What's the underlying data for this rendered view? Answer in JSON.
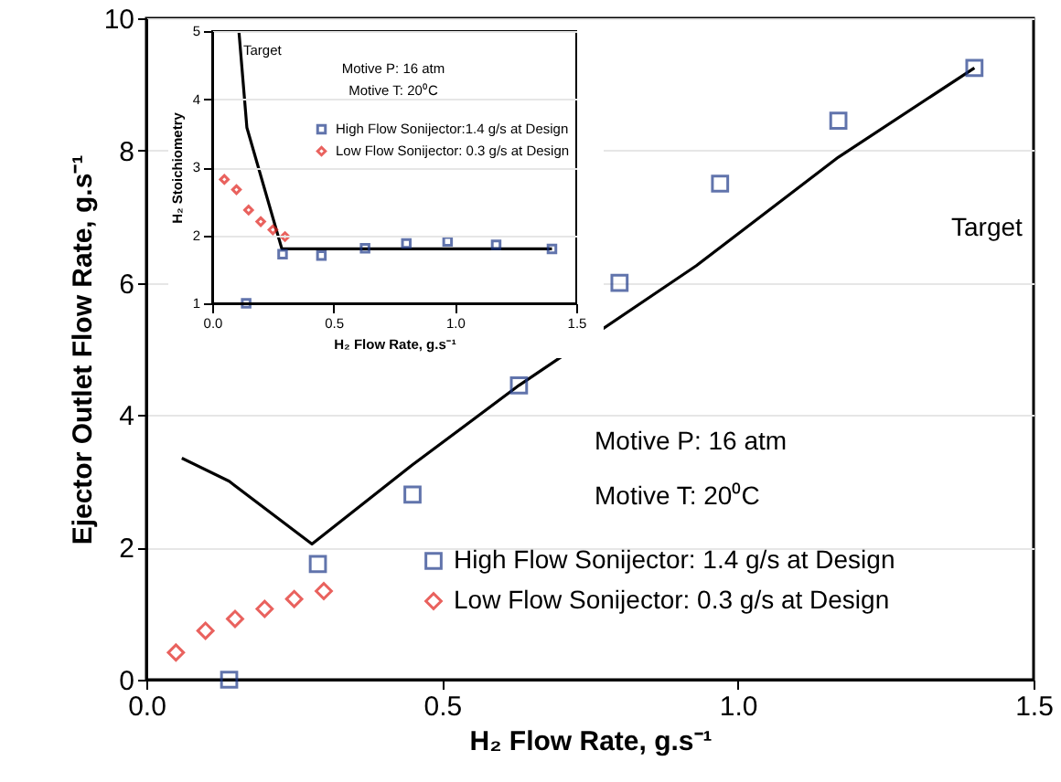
{
  "chart_data": [
    {
      "type": "scatter",
      "xlabel": "H₂ Flow Rate, g.s⁻¹",
      "ylabel": "Ejector Outlet Flow Rate, g.s⁻¹",
      "xlim": [
        0,
        1.5
      ],
      "ylim": [
        0,
        10
      ],
      "xticks": [
        {
          "value": 0,
          "label": "0.0"
        },
        {
          "value": 0.5,
          "label": "0.5"
        },
        {
          "value": 1,
          "label": "1.0"
        },
        {
          "value": 1.5,
          "label": "1.5"
        }
      ],
      "yticks": [
        0,
        2,
        4,
        6,
        8,
        10
      ],
      "grid": "y",
      "legend": "bottom right",
      "annotations": [
        "Motive P: 16 atm",
        "Motive T: 20⁰C",
        "Target"
      ],
      "series": [
        {
          "type": "line",
          "color": "#000000",
          "marker": "none",
          "x": [
            0.06,
            0.14,
            0.28,
            0.45,
            0.63,
            0.93,
            1.17,
            1.4
          ],
          "values": [
            3.35,
            3.0,
            2.05,
            3.25,
            4.45,
            6.26,
            7.9,
            9.25
          ]
        },
        {
          "name": "High Flow Sonijector: 1.4 g/s at Design",
          "color": "#1f3a8a",
          "marker": "square",
          "x": [
            0.14,
            0.29,
            0.45,
            0.63,
            0.8,
            0.97,
            1.17,
            1.4
          ],
          "values": [
            0,
            1.75,
            2.8,
            4.45,
            6.0,
            7.5,
            8.45,
            9.25
          ]
        },
        {
          "name": "Low Flow Sonijector: 0.3 g/s at Design",
          "color": "#e0201b",
          "marker": "diamond",
          "x": [
            0.05,
            0.1,
            0.15,
            0.2,
            0.25,
            0.3
          ],
          "values": [
            0.41,
            0.74,
            0.92,
            1.07,
            1.22,
            1.34
          ]
        }
      ]
    },
    {
      "type": "scatter",
      "xlabel": "H₂ Flow Rate, g.s⁻¹",
      "ylabel": "H₂ Stoichiometry",
      "xlim": [
        0,
        1.5
      ],
      "ylim": [
        1,
        5
      ],
      "xticks": [
        {
          "value": 0,
          "label": "0.0"
        },
        {
          "value": 0.5,
          "label": "0.5"
        },
        {
          "value": 1,
          "label": "1.0"
        },
        {
          "value": 1.5,
          "label": "1.5"
        }
      ],
      "yticks": [
        1,
        2,
        3,
        4,
        5
      ],
      "grid": "y",
      "legend": "top",
      "annotations": [
        "Motive P: 16 atm",
        "Motive T: 20⁰C",
        "Target"
      ],
      "series": [
        {
          "type": "line",
          "color": "#000000",
          "marker": "none",
          "x": [
            0.11,
            0.143,
            0.287,
            1.4
          ],
          "values": [
            5.0,
            3.58,
            1.8,
            1.8
          ]
        },
        {
          "name": "High Flow Sonijector:1.4 g/s at Design",
          "color": "#1f3a8a",
          "marker": "square",
          "x": [
            0.14,
            0.29,
            0.45,
            0.63,
            0.8,
            0.97,
            1.17,
            1.4
          ],
          "values": [
            1.0,
            1.72,
            1.7,
            1.81,
            1.88,
            1.91,
            1.86,
            1.8
          ]
        },
        {
          "name": "Low Flow Sonijector: 0.3 g/s at Design",
          "color": "#e0201b",
          "marker": "diamond",
          "x": [
            0.05,
            0.1,
            0.15,
            0.2,
            0.25,
            0.3
          ],
          "values": [
            2.82,
            2.67,
            2.37,
            2.2,
            2.08,
            1.98
          ]
        }
      ]
    }
  ]
}
